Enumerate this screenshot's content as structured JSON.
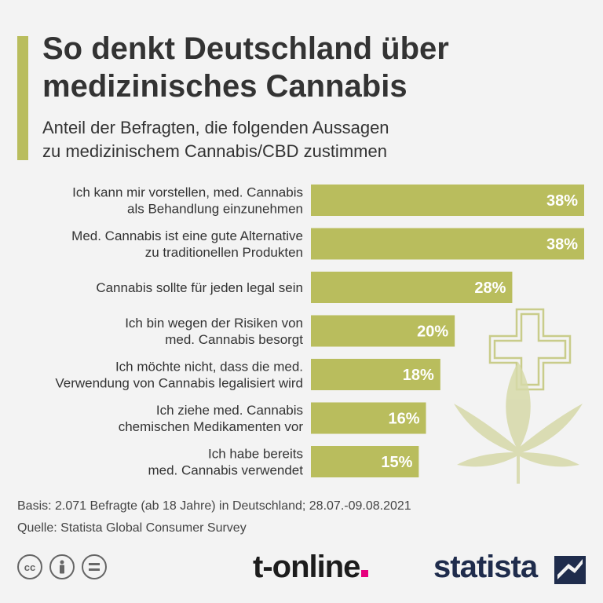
{
  "header": {
    "title_line1": "So denkt Deutschland über",
    "title_line2": "medizinisches Cannabis",
    "subtitle_line1": "Anteil der Befragten, die folgenden Aussagen",
    "subtitle_line2": "zu medizinischem Cannabis/CBD zustimmen"
  },
  "chart_data": {
    "type": "bar",
    "orientation": "horizontal",
    "categories": [
      [
        "Ich kann mir vorstellen, med. Cannabis",
        "als Behandlung einzunehmen"
      ],
      [
        "Med. Cannabis ist eine gute Alternative",
        "zu traditionellen Produkten"
      ],
      [
        "Cannabis sollte für jeden legal sein"
      ],
      [
        "Ich bin wegen der Risiken von",
        "med. Cannabis besorgt"
      ],
      [
        "Ich möchte nicht, dass die med.",
        "Verwendung von Cannabis legalisiert wird"
      ],
      [
        "Ich ziehe med. Cannabis",
        "chemischen Medikamenten vor"
      ],
      [
        "Ich habe bereits",
        "med. Cannabis verwendet"
      ]
    ],
    "values": [
      38,
      38,
      28,
      20,
      18,
      16,
      15
    ],
    "value_labels": [
      "38%",
      "38%",
      "28%",
      "20%",
      "18%",
      "16%",
      "15%"
    ],
    "unit": "%",
    "bar_color": "#b9bd5d",
    "value_label_color": "#ffffff"
  },
  "footer": {
    "basis": "Basis: 2.071 Befragte (ab 18 Jahre) in Deutschland; 28.07.-09.08.2021",
    "source": "Quelle: Statista Global Consumer Survey",
    "cc_icons": [
      "cc-icon",
      "attribution-icon",
      "no-derivatives-icon"
    ],
    "brand_tonline": "t-online",
    "brand_statista": "statista",
    "brand_tonline_dot_color": "#e6007e",
    "brand_statista_color": "#1f2c4c"
  }
}
